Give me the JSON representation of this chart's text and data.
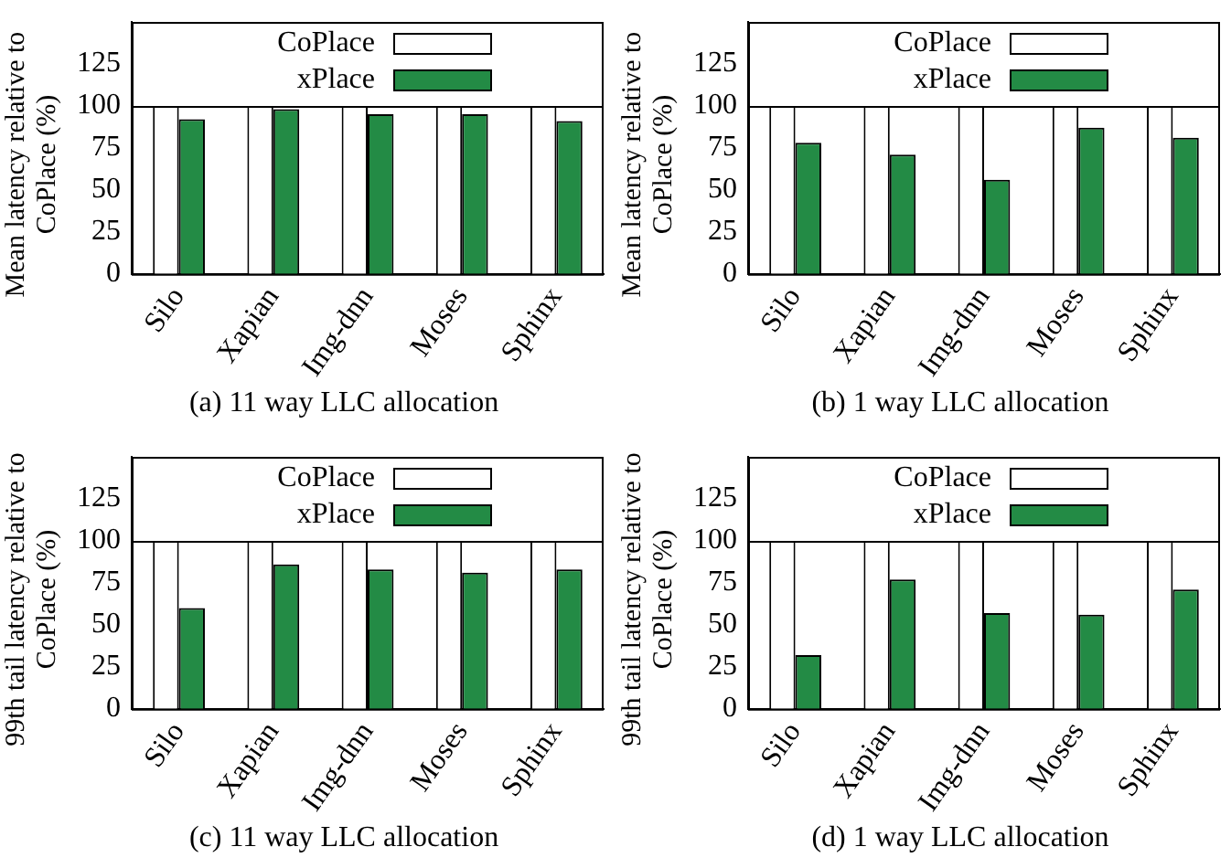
{
  "chart_data": [
    {
      "type": "bar",
      "title": "(a) 11 way LLC allocation",
      "ylabel": "Mean latency relative to CoPlace (%)",
      "categories": [
        "Silo",
        "Xapian",
        "Img-dnn",
        "Moses",
        "Sphinx"
      ],
      "series": [
        {
          "name": "CoPlace",
          "color": "#ffffff",
          "values": [
            100,
            100,
            100,
            100,
            100
          ]
        },
        {
          "name": "xPlace",
          "color": "#238b45",
          "values": [
            92,
            98,
            95,
            95,
            91
          ]
        }
      ],
      "ref_lines": [
        {
          "axis": "y",
          "value": 100,
          "color": "#000000"
        }
      ],
      "ylim": [
        0,
        150
      ],
      "yticks": [
        0,
        25,
        50,
        75,
        100,
        125
      ],
      "legend": "top",
      "grid": false
    },
    {
      "type": "bar",
      "title": "(b) 1 way LLC allocation",
      "ylabel": "Mean latency relative to CoPlace (%)",
      "categories": [
        "Silo",
        "Xapian",
        "Img-dnn",
        "Moses",
        "Sphinx"
      ],
      "series": [
        {
          "name": "CoPlace",
          "color": "#ffffff",
          "values": [
            100,
            100,
            100,
            100,
            100
          ]
        },
        {
          "name": "xPlace",
          "color": "#238b45",
          "values": [
            78,
            71,
            56,
            87,
            81
          ]
        }
      ],
      "ref_lines": [
        {
          "axis": "y",
          "value": 100,
          "color": "#000000"
        }
      ],
      "ylim": [
        0,
        150
      ],
      "yticks": [
        0,
        25,
        50,
        75,
        100,
        125
      ],
      "legend": "top",
      "grid": false
    },
    {
      "type": "bar",
      "title": "(c) 11 way LLC allocation",
      "ylabel": "99th tail latency relative to CoPlace (%)",
      "categories": [
        "Silo",
        "Xapian",
        "Img-dnn",
        "Moses",
        "Sphinx"
      ],
      "series": [
        {
          "name": "CoPlace",
          "color": "#ffffff",
          "values": [
            100,
            100,
            100,
            100,
            100
          ]
        },
        {
          "name": "xPlace",
          "color": "#238b45",
          "values": [
            60,
            86,
            83,
            81,
            83
          ]
        }
      ],
      "ref_lines": [
        {
          "axis": "y",
          "value": 100,
          "color": "#000000"
        }
      ],
      "ylim": [
        0,
        150
      ],
      "yticks": [
        0,
        25,
        50,
        75,
        100,
        125
      ],
      "legend": "top",
      "grid": false
    },
    {
      "type": "bar",
      "title": "(d) 1 way LLC allocation",
      "ylabel": "99th tail latency relative to CoPlace (%)",
      "categories": [
        "Silo",
        "Xapian",
        "Img-dnn",
        "Moses",
        "Sphinx"
      ],
      "series": [
        {
          "name": "CoPlace",
          "color": "#ffffff",
          "values": [
            100,
            100,
            100,
            100,
            100
          ]
        },
        {
          "name": "xPlace",
          "color": "#238b45",
          "values": [
            32,
            77,
            57,
            56,
            71
          ]
        }
      ],
      "ref_lines": [
        {
          "axis": "y",
          "value": 100,
          "color": "#000000"
        }
      ],
      "ylim": [
        0,
        150
      ],
      "yticks": [
        0,
        25,
        50,
        75,
        100,
        125
      ],
      "legend": "top",
      "grid": false
    }
  ]
}
